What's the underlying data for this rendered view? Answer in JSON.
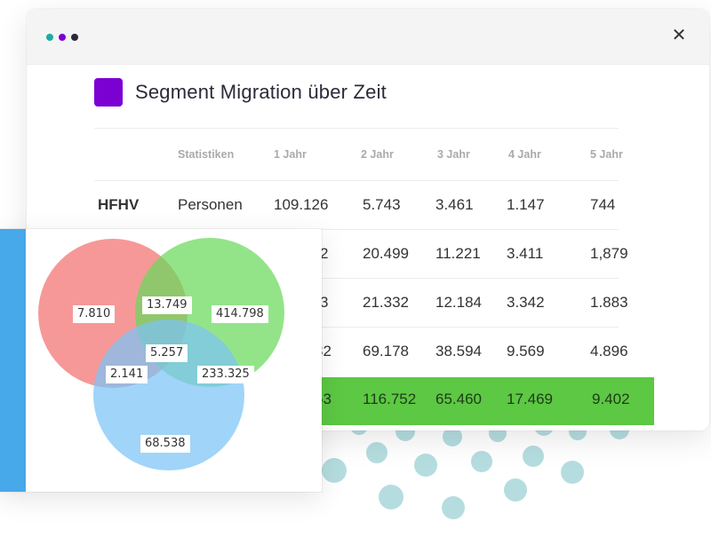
{
  "window": {
    "close_label": "✕",
    "traffic_colors": [
      "#1fa9a4",
      "#7b00d2",
      "#2a2a3a"
    ]
  },
  "header": {
    "title": "Segment Migration über Zeit",
    "accent_color": "#7b00d2"
  },
  "table": {
    "columns": [
      "",
      "Statistiken",
      "1 Jahr",
      "2 Jahr",
      "3 Jahr",
      "4 Jahr",
      "5 Jahr"
    ],
    "rows": [
      {
        "label": "HFHV",
        "stat": "Personen",
        "values": [
          "109.126",
          "5.743",
          "3.461",
          "1.147",
          "744"
        ],
        "highlight": false
      },
      {
        "label": "",
        "stat": "",
        "values": [
          "2",
          "20.499",
          "11.221",
          "3.411",
          "1,879"
        ],
        "highlight": false
      },
      {
        "label": "",
        "stat": "",
        "values": [
          "3",
          "21.332",
          "12.184",
          "3.342",
          "1.883"
        ],
        "highlight": false
      },
      {
        "label": "",
        "stat": "",
        "values": [
          "32",
          "69.178",
          "38.594",
          "9.569",
          "4.896"
        ],
        "highlight": false
      },
      {
        "label": "",
        "stat": "",
        "values": [
          "53",
          "116.752",
          "65.460",
          "17.469",
          "9.402"
        ],
        "highlight": true
      }
    ],
    "highlight_color": "#5cc843"
  },
  "venn": {
    "accent_color": "#47a8ea",
    "circle_colors": [
      "#f47b7b",
      "#69d95b",
      "#7cc4f5"
    ],
    "regions": {
      "a_only": "7.810",
      "ab": "13.749",
      "b_only": "414.798",
      "abc": "5.257",
      "ac": "2.141",
      "bc": "233.325",
      "c_only": "68.538"
    }
  }
}
